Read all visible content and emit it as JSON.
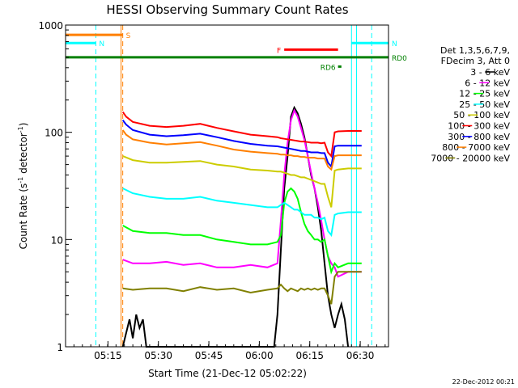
{
  "chart_data": {
    "type": "line",
    "title": "HESSI Observing Summary Count Rates",
    "xlabel": "Start Time (21-Dec-12 05:02:22)",
    "ylabel_parts": [
      "Count Rate (s",
      "-1",
      " detector",
      "-1",
      ")"
    ],
    "yscale": "log",
    "ylim": [
      1,
      1000
    ],
    "xlim_minutes": [
      0,
      96
    ],
    "x_ticks": [
      {
        "label": "05:15",
        "min": 12.6
      },
      {
        "label": "05:30",
        "min": 27.6
      },
      {
        "label": "05:45",
        "min": 42.6
      },
      {
        "label": "06:00",
        "min": 57.6
      },
      {
        "label": "06:15",
        "min": 72.6
      },
      {
        "label": "06:30",
        "min": 87.6
      }
    ],
    "y_ticks": [
      {
        "label": "1",
        "value": 1
      },
      {
        "label": "10",
        "value": 10
      },
      {
        "label": "100",
        "value": 100
      },
      {
        "label": "1000",
        "value": 1000
      }
    ],
    "legend_header": [
      "Det 1,3,5,6,7,9,",
      "FDecim 3, Att 0"
    ],
    "legend_position": "right",
    "series": [
      {
        "name": "3 - 6 keV",
        "color": "#000000",
        "points": [
          [
            17,
            1
          ],
          [
            19,
            1.8
          ],
          [
            20,
            1.2
          ],
          [
            21,
            2
          ],
          [
            22,
            1.5
          ],
          [
            23,
            1.8
          ],
          [
            24,
            1
          ],
          [
            62,
            1
          ],
          [
            63,
            2
          ],
          [
            64,
            8
          ],
          [
            65,
            30
          ],
          [
            66,
            60
          ],
          [
            67,
            140
          ],
          [
            68,
            170
          ],
          [
            69,
            150
          ],
          [
            70,
            120
          ],
          [
            71,
            90
          ],
          [
            72,
            60
          ],
          [
            73,
            40
          ],
          [
            74,
            30
          ],
          [
            75,
            20
          ],
          [
            76,
            12
          ],
          [
            77,
            6
          ],
          [
            78,
            3
          ],
          [
            79,
            2
          ],
          [
            80,
            1.5
          ],
          [
            81,
            2
          ],
          [
            82,
            2.5
          ],
          [
            83,
            1.8
          ],
          [
            84,
            1
          ]
        ]
      },
      {
        "name": "6 - 12 keV",
        "color": "#ff00ff",
        "points": [
          [
            17,
            6.5
          ],
          [
            20,
            6
          ],
          [
            25,
            6
          ],
          [
            30,
            6.2
          ],
          [
            35,
            5.8
          ],
          [
            40,
            6
          ],
          [
            45,
            5.5
          ],
          [
            50,
            5.5
          ],
          [
            55,
            5.8
          ],
          [
            60,
            5.5
          ],
          [
            63,
            6
          ],
          [
            64,
            15
          ],
          [
            65,
            40
          ],
          [
            66,
            80
          ],
          [
            67,
            130
          ],
          [
            68,
            160
          ],
          [
            69,
            140
          ],
          [
            70,
            110
          ],
          [
            71,
            85
          ],
          [
            72,
            60
          ],
          [
            73,
            42
          ],
          [
            74,
            30
          ],
          [
            75,
            22
          ],
          [
            76,
            15
          ],
          [
            77,
            10
          ],
          [
            78,
            7
          ],
          [
            79,
            6
          ],
          [
            80,
            5.5
          ],
          [
            81,
            4.5
          ],
          [
            84,
            5
          ],
          [
            88,
            5
          ]
        ]
      },
      {
        "name": "12 - 25 keV",
        "color": "#00ff00",
        "points": [
          [
            17,
            13.5
          ],
          [
            20,
            12
          ],
          [
            25,
            11.5
          ],
          [
            30,
            11.5
          ],
          [
            35,
            11
          ],
          [
            40,
            11
          ],
          [
            45,
            10
          ],
          [
            50,
            9.5
          ],
          [
            55,
            9
          ],
          [
            60,
            9
          ],
          [
            63,
            9.5
          ],
          [
            64,
            11
          ],
          [
            65,
            22
          ],
          [
            66,
            28
          ],
          [
            67,
            30
          ],
          [
            68,
            28
          ],
          [
            69,
            24
          ],
          [
            70,
            18
          ],
          [
            71,
            14
          ],
          [
            72,
            12
          ],
          [
            73,
            11
          ],
          [
            74,
            10
          ],
          [
            75,
            10
          ],
          [
            76,
            9.5
          ],
          [
            77,
            10
          ],
          [
            78,
            7
          ],
          [
            79,
            5
          ],
          [
            80,
            6
          ],
          [
            81,
            5.5
          ],
          [
            84,
            6
          ],
          [
            88,
            6
          ]
        ]
      },
      {
        "name": "25 - 50 keV",
        "color": "#00ffff",
        "points": [
          [
            17,
            30
          ],
          [
            20,
            27
          ],
          [
            25,
            25
          ],
          [
            30,
            24
          ],
          [
            35,
            24
          ],
          [
            40,
            25
          ],
          [
            45,
            23
          ],
          [
            50,
            22
          ],
          [
            55,
            21
          ],
          [
            60,
            20
          ],
          [
            63,
            20
          ],
          [
            64,
            21
          ],
          [
            65,
            22
          ],
          [
            66,
            21
          ],
          [
            67,
            20
          ],
          [
            68,
            19
          ],
          [
            69,
            19
          ],
          [
            70,
            18
          ],
          [
            71,
            17
          ],
          [
            72,
            17
          ],
          [
            73,
            17
          ],
          [
            74,
            16
          ],
          [
            75,
            16
          ],
          [
            76,
            15.5
          ],
          [
            77,
            16
          ],
          [
            78,
            12
          ],
          [
            79,
            11
          ],
          [
            80,
            17
          ],
          [
            81,
            17.5
          ],
          [
            84,
            18
          ],
          [
            88,
            18
          ]
        ]
      },
      {
        "name": "50 - 100 keV",
        "color": "#cccc00",
        "points": [
          [
            17,
            60
          ],
          [
            20,
            55
          ],
          [
            25,
            52
          ],
          [
            30,
            52
          ],
          [
            35,
            53
          ],
          [
            40,
            54
          ],
          [
            45,
            50
          ],
          [
            50,
            48
          ],
          [
            55,
            45
          ],
          [
            60,
            44
          ],
          [
            63,
            43
          ],
          [
            64,
            43
          ],
          [
            65,
            42
          ],
          [
            66,
            41
          ],
          [
            67,
            40
          ],
          [
            68,
            40
          ],
          [
            69,
            39
          ],
          [
            70,
            38
          ],
          [
            71,
            38
          ],
          [
            72,
            37
          ],
          [
            73,
            36
          ],
          [
            74,
            35
          ],
          [
            75,
            34
          ],
          [
            76,
            33
          ],
          [
            77,
            33
          ],
          [
            78,
            25
          ],
          [
            79,
            20
          ],
          [
            80,
            44
          ],
          [
            81,
            45
          ],
          [
            84,
            46
          ],
          [
            88,
            46
          ]
        ]
      },
      {
        "name": "100 - 300 keV",
        "color": "#ff0000",
        "points": [
          [
            17,
            155
          ],
          [
            18,
            140
          ],
          [
            20,
            125
          ],
          [
            25,
            115
          ],
          [
            30,
            112
          ],
          [
            35,
            115
          ],
          [
            40,
            120
          ],
          [
            45,
            110
          ],
          [
            50,
            102
          ],
          [
            55,
            95
          ],
          [
            60,
            92
          ],
          [
            63,
            90
          ],
          [
            64,
            88
          ],
          [
            65,
            87
          ],
          [
            66,
            86
          ],
          [
            67,
            85
          ],
          [
            68,
            84
          ],
          [
            69,
            83
          ],
          [
            70,
            82
          ],
          [
            71,
            82
          ],
          [
            72,
            81
          ],
          [
            73,
            80
          ],
          [
            74,
            80
          ],
          [
            75,
            80
          ],
          [
            76,
            79
          ],
          [
            77,
            80
          ],
          [
            78,
            65
          ],
          [
            79,
            60
          ],
          [
            80,
            100
          ],
          [
            81,
            102
          ],
          [
            84,
            103
          ],
          [
            88,
            103
          ]
        ]
      },
      {
        "name": "300 - 800 keV",
        "color": "#0000ff",
        "points": [
          [
            17,
            130
          ],
          [
            18,
            118
          ],
          [
            20,
            105
          ],
          [
            25,
            95
          ],
          [
            30,
            92
          ],
          [
            35,
            94
          ],
          [
            40,
            97
          ],
          [
            45,
            90
          ],
          [
            50,
            83
          ],
          [
            55,
            78
          ],
          [
            60,
            75
          ],
          [
            63,
            74
          ],
          [
            64,
            73
          ],
          [
            65,
            72
          ],
          [
            66,
            71
          ],
          [
            67,
            70
          ],
          [
            68,
            69
          ],
          [
            69,
            68
          ],
          [
            70,
            67
          ],
          [
            71,
            67
          ],
          [
            72,
            66
          ],
          [
            73,
            65
          ],
          [
            74,
            65
          ],
          [
            75,
            65
          ],
          [
            76,
            64
          ],
          [
            77,
            64
          ],
          [
            78,
            52
          ],
          [
            79,
            48
          ],
          [
            80,
            74
          ],
          [
            81,
            75
          ],
          [
            84,
            75
          ],
          [
            88,
            75
          ]
        ]
      },
      {
        "name": "800 - 7000 keV",
        "color": "#ff7f00",
        "points": [
          [
            17,
            105
          ],
          [
            18,
            95
          ],
          [
            20,
            86
          ],
          [
            25,
            80
          ],
          [
            30,
            77
          ],
          [
            35,
            79
          ],
          [
            40,
            81
          ],
          [
            45,
            75
          ],
          [
            50,
            69
          ],
          [
            55,
            66
          ],
          [
            60,
            64
          ],
          [
            63,
            63
          ],
          [
            64,
            62
          ],
          [
            65,
            62
          ],
          [
            66,
            61
          ],
          [
            67,
            61
          ],
          [
            68,
            60
          ],
          [
            69,
            60
          ],
          [
            70,
            59
          ],
          [
            71,
            59
          ],
          [
            72,
            58
          ],
          [
            73,
            58
          ],
          [
            74,
            58
          ],
          [
            75,
            57
          ],
          [
            76,
            57
          ],
          [
            77,
            57
          ],
          [
            78,
            48
          ],
          [
            79,
            45
          ],
          [
            80,
            60
          ],
          [
            81,
            61
          ],
          [
            84,
            61
          ],
          [
            88,
            61
          ]
        ]
      },
      {
        "name": "7000 - 20000 keV",
        "color": "#808000",
        "points": [
          [
            17,
            3.5
          ],
          [
            20,
            3.4
          ],
          [
            25,
            3.5
          ],
          [
            30,
            3.5
          ],
          [
            35,
            3.3
          ],
          [
            40,
            3.6
          ],
          [
            45,
            3.4
          ],
          [
            50,
            3.5
          ],
          [
            55,
            3.2
          ],
          [
            60,
            3.4
          ],
          [
            63,
            3.5
          ],
          [
            64,
            3.8
          ],
          [
            65,
            3.5
          ],
          [
            66,
            3.3
          ],
          [
            67,
            3.5
          ],
          [
            68,
            3.4
          ],
          [
            69,
            3.3
          ],
          [
            70,
            3.5
          ],
          [
            71,
            3.4
          ],
          [
            72,
            3.5
          ],
          [
            73,
            3.4
          ],
          [
            74,
            3.5
          ],
          [
            75,
            3.4
          ],
          [
            76,
            3.5
          ],
          [
            77,
            3.5
          ],
          [
            78,
            3
          ],
          [
            79,
            2.5
          ],
          [
            80,
            4.5
          ],
          [
            81,
            5
          ],
          [
            84,
            5
          ],
          [
            88,
            5
          ]
        ]
      }
    ],
    "flags": [
      {
        "label": "S",
        "color": "#ff7f00",
        "x0": 0,
        "x1": 17,
        "y": 810
      },
      {
        "label": "N",
        "color": "#00ffff",
        "x0": 0,
        "x1": 9,
        "y": 680
      },
      {
        "label": "N",
        "color": "#00ffff",
        "x0": 85,
        "x1": 96,
        "y": 680
      },
      {
        "label": "F",
        "color": "#ff0000",
        "x0": 65,
        "x1": 81,
        "y": 590
      },
      {
        "label": "RD0",
        "color": "#008000",
        "x0": 0,
        "x1": 96,
        "y": 500
      },
      {
        "label": "RD6",
        "color": "#008000",
        "x0": 81,
        "x1": 82,
        "y": 410
      }
    ],
    "vlines_dashed": [
      {
        "min": 9,
        "color": "#00ffff"
      },
      {
        "min": 17,
        "color": "#ff7f00"
      },
      {
        "min": 91,
        "color": "#00ffff"
      }
    ],
    "vlines_solid": [
      {
        "min": 16.5,
        "color": "#ff7f00"
      },
      {
        "min": 85,
        "color": "#00ffff"
      },
      {
        "min": 86.5,
        "color": "#00ffff"
      }
    ],
    "timestamp": "22-Dec-2012 00:21"
  }
}
